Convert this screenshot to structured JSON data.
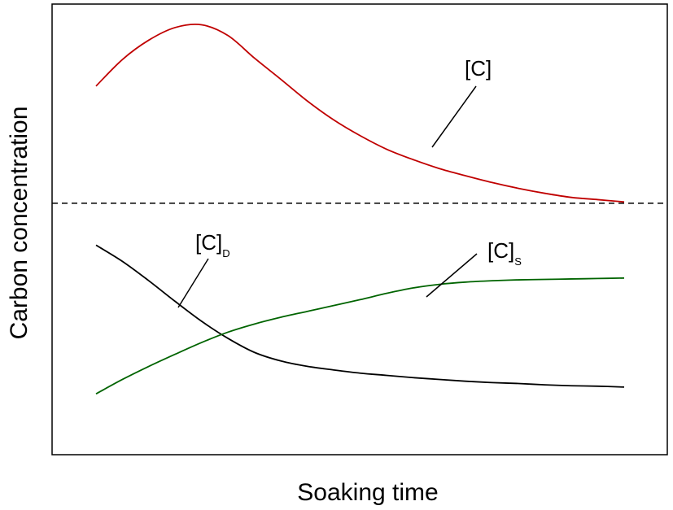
{
  "chart_data": {
    "type": "line",
    "title": "",
    "xlabel": "Soaking time",
    "ylabel": "Carbon concentration",
    "xlim": [
      0,
      1
    ],
    "ylim": [
      0,
      1
    ],
    "x_ticks": "none",
    "y_ticks": "none",
    "grid": false,
    "legend": "none",
    "reference_line": {
      "y": 0.558,
      "style": "dashed",
      "color": "#000000"
    },
    "series": [
      {
        "name": "[C]",
        "color": "#c00000",
        "x": [
          0.0,
          0.05,
          0.1,
          0.15,
          0.2,
          0.25,
          0.3,
          0.35,
          0.4,
          0.45,
          0.5,
          0.55,
          0.6,
          0.65,
          0.7,
          0.75,
          0.8,
          0.85,
          0.9,
          0.95,
          1.0
        ],
        "y": [
          0.818,
          0.877,
          0.92,
          0.948,
          0.954,
          0.93,
          0.88,
          0.833,
          0.785,
          0.743,
          0.708,
          0.678,
          0.655,
          0.635,
          0.619,
          0.604,
          0.591,
          0.58,
          0.571,
          0.566,
          0.561
        ],
        "label": {
          "text": "[C]"
        }
      },
      {
        "name": "[C]D",
        "color": "#000000",
        "x": [
          0.0,
          0.05,
          0.1,
          0.15,
          0.2,
          0.25,
          0.3,
          0.35,
          0.4,
          0.45,
          0.5,
          0.55,
          0.6,
          0.65,
          0.7,
          0.75,
          0.8,
          0.85,
          0.9,
          0.95,
          1.0
        ],
        "y": [
          0.465,
          0.429,
          0.386,
          0.34,
          0.296,
          0.258,
          0.227,
          0.208,
          0.196,
          0.188,
          0.181,
          0.176,
          0.171,
          0.167,
          0.163,
          0.16,
          0.158,
          0.155,
          0.153,
          0.152,
          0.15
        ],
        "label": {
          "text": "[C]",
          "subscript": "D"
        }
      },
      {
        "name": "[C]S",
        "color": "#006400",
        "x": [
          0.0,
          0.05,
          0.1,
          0.15,
          0.2,
          0.25,
          0.3,
          0.35,
          0.4,
          0.45,
          0.5,
          0.55,
          0.6,
          0.65,
          0.7,
          0.75,
          0.8,
          0.85,
          0.9,
          0.95,
          1.0
        ],
        "y": [
          0.135,
          0.167,
          0.196,
          0.223,
          0.249,
          0.272,
          0.29,
          0.305,
          0.318,
          0.331,
          0.344,
          0.358,
          0.37,
          0.378,
          0.383,
          0.386,
          0.388,
          0.389,
          0.39,
          0.391,
          0.392
        ],
        "label": {
          "text": "[C]",
          "subscript": "S"
        }
      }
    ]
  }
}
